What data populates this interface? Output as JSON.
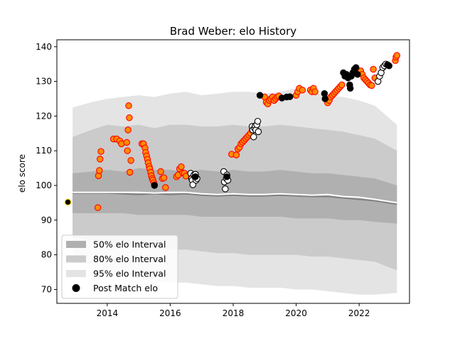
{
  "chart_data": {
    "type": "scatter",
    "title": "Brad Weber: elo History",
    "xlabel": "",
    "ylabel": "elo score",
    "xlim": [
      2012.4,
      2023.6
    ],
    "ylim": [
      66,
      142
    ],
    "x_ticks": [
      2014,
      2016,
      2018,
      2020,
      2022
    ],
    "y_ticks": [
      70,
      80,
      90,
      100,
      110,
      120,
      130,
      140
    ],
    "legend_position": "lower-left",
    "grid": false,
    "colors": {
      "band50": "#b0b0b0",
      "band80": "#cbcbcb",
      "band95": "#e4e4e4",
      "median_line": "#808080",
      "mean_line": "#ffffff",
      "win_fill": "#ff8c00",
      "win_edge": "#ff0000",
      "loss_fill": "#ffffff",
      "loss_edge": "#000000",
      "nomatch_fill": "#000000",
      "highlight_edge": "#ffd700"
    },
    "legend": [
      {
        "label": "50% elo Interval",
        "key": "band50"
      },
      {
        "label": "80% elo Interval",
        "key": "band80"
      },
      {
        "label": "95% elo Interval",
        "key": "band95"
      },
      {
        "label": "Post Match elo",
        "key": "marker"
      }
    ],
    "bands": {
      "x": [
        2012.9,
        2013.5,
        2014.0,
        2014.5,
        2015.0,
        2015.5,
        2016.0,
        2016.5,
        2017.0,
        2017.5,
        2018.0,
        2018.5,
        2019.0,
        2019.5,
        2020.0,
        2020.5,
        2021.0,
        2021.5,
        2022.0,
        2022.5,
        2023.2
      ],
      "p95_high": [
        122.5,
        124.0,
        125.0,
        125.5,
        126.0,
        125.5,
        126.5,
        127.0,
        126.0,
        126.5,
        127.0,
        127.0,
        126.5,
        127.0,
        128.0,
        127.0,
        126.0,
        125.5,
        124.5,
        123.0,
        117.5
      ],
      "p80_high": [
        114.0,
        116.0,
        117.5,
        117.0,
        117.5,
        116.5,
        117.5,
        117.5,
        117.0,
        117.0,
        117.5,
        117.0,
        117.0,
        117.5,
        117.0,
        116.5,
        116.0,
        115.5,
        114.5,
        113.5,
        110.0
      ],
      "p50_high": [
        103.5,
        104.0,
        104.5,
        104.0,
        105.0,
        104.5,
        104.5,
        104.0,
        104.5,
        104.0,
        104.5,
        104.0,
        104.0,
        104.5,
        104.0,
        103.5,
        103.5,
        103.0,
        102.5,
        102.0,
        100.0
      ],
      "median": [
        97.8,
        97.8,
        97.8,
        97.6,
        97.4,
        97.6,
        97.4,
        97.6,
        97.2,
        97.0,
        97.2,
        97.0,
        97.0,
        97.2,
        97.0,
        96.8,
        96.8,
        96.4,
        96.0,
        95.6,
        94.6
      ],
      "mean": [
        98.0,
        98.0,
        98.0,
        98.0,
        98.0,
        97.8,
        98.0,
        98.0,
        97.6,
        97.4,
        97.6,
        97.4,
        97.4,
        97.6,
        97.4,
        97.2,
        97.4,
        96.8,
        96.6,
        96.0,
        95.0
      ],
      "p50_low": [
        92.0,
        92.0,
        92.0,
        92.0,
        91.5,
        91.5,
        91.5,
        91.5,
        91.0,
        91.0,
        91.0,
        91.0,
        91.0,
        91.0,
        90.5,
        90.5,
        90.5,
        90.0,
        90.0,
        89.5,
        89.0
      ],
      "p80_low": [
        85.0,
        84.0,
        83.5,
        83.0,
        82.5,
        82.0,
        81.5,
        81.5,
        81.0,
        80.5,
        80.5,
        80.0,
        80.0,
        80.0,
        80.0,
        79.5,
        79.5,
        79.0,
        78.5,
        78.0,
        75.5
      ],
      "p95_low": [
        79.0,
        77.0,
        75.0,
        74.0,
        73.0,
        72.5,
        72.0,
        72.0,
        71.5,
        71.0,
        71.0,
        70.5,
        70.5,
        70.5,
        70.0,
        70.0,
        69.5,
        69.0,
        68.5,
        68.5,
        69.0
      ]
    },
    "series": [
      {
        "kind": "highlight",
        "x": [
          2012.75
        ],
        "y": [
          95.2
        ]
      },
      {
        "kind": "win",
        "x": [
          2013.7,
          2013.72,
          2013.75,
          2013.77,
          2013.8,
          2014.2,
          2014.3,
          2014.4,
          2014.45,
          2014.62,
          2014.64,
          2014.66,
          2014.68,
          2014.7,
          2014.72,
          2014.75,
          2015.1,
          2015.15,
          2015.2,
          2015.22,
          2015.25,
          2015.28,
          2015.3,
          2015.33,
          2015.35,
          2015.38,
          2015.4,
          2015.43,
          2015.45,
          2015.48,
          2015.5,
          2015.7,
          2015.75,
          2015.8,
          2015.85,
          2016.2,
          2016.25,
          2016.3,
          2016.35,
          2016.4,
          2016.45,
          2016.5,
          2017.95,
          2018.1,
          2018.15,
          2018.2,
          2018.25,
          2018.3,
          2018.35,
          2018.4,
          2018.45,
          2018.5,
          2018.55,
          2018.6,
          2018.65,
          2019.0,
          2019.05,
          2019.1,
          2019.15,
          2019.2,
          2019.25,
          2019.3,
          2019.35,
          2019.4,
          2019.45,
          2020.0,
          2020.05,
          2020.1,
          2020.2,
          2020.45,
          2020.5,
          2020.55,
          2020.6,
          2021.0,
          2021.05,
          2021.1,
          2021.15,
          2021.2,
          2021.25,
          2021.3,
          2021.35,
          2021.4,
          2021.45,
          2022.05,
          2022.1,
          2022.15,
          2022.2,
          2022.25,
          2022.3,
          2022.35,
          2022.4,
          2022.45,
          2022.5,
          2023.15,
          2023.17,
          2023.2
        ],
        "y": [
          93.6,
          102.8,
          104.3,
          107.6,
          109.8,
          113.4,
          113.4,
          112.8,
          112.0,
          112.4,
          110.0,
          116.0,
          123.0,
          119.5,
          103.8,
          107.2,
          112.0,
          112.0,
          110.8,
          109.5,
          108.5,
          107.5,
          106.5,
          105.5,
          104.8,
          103.8,
          102.8,
          102.0,
          101.5,
          100.8,
          100.2,
          104.0,
          102.0,
          102.2,
          99.4,
          102.5,
          103.0,
          104.8,
          105.4,
          103.6,
          103.5,
          102.7,
          109.0,
          108.8,
          110.5,
          111.0,
          112.0,
          112.5,
          113.0,
          113.5,
          114.0,
          114.5,
          115.0,
          116.0,
          116.5,
          125.5,
          124.0,
          123.5,
          124.5,
          125.0,
          125.5,
          124.5,
          125.0,
          125.5,
          125.8,
          126.0,
          127.0,
          128.0,
          127.5,
          127.5,
          127.0,
          128.0,
          127.0,
          123.8,
          124.5,
          125.5,
          126.0,
          126.5,
          127.0,
          127.5,
          128.0,
          128.5,
          129.0,
          133.0,
          132.0,
          131.0,
          130.5,
          130.0,
          129.5,
          129.0,
          128.8,
          133.5,
          131.0,
          136.0,
          137.0,
          137.5
        ]
      },
      {
        "kind": "loss",
        "x": [
          2016.65,
          2016.68,
          2016.7,
          2016.72,
          2016.75,
          2016.78,
          2016.8,
          2016.82,
          2016.85,
          2017.7,
          2017.72,
          2017.75,
          2017.78,
          2017.8,
          2017.83,
          2018.6,
          2018.62,
          2018.65,
          2018.68,
          2018.7,
          2018.72,
          2018.75,
          2018.78,
          2018.8,
          2022.6,
          2022.65,
          2022.7,
          2022.75,
          2022.8,
          2022.85
        ],
        "y": [
          103.5,
          102.0,
          101.5,
          100.2,
          103.0,
          102.5,
          103.2,
          101.5,
          102.0,
          104.0,
          101.0,
          99.0,
          102.0,
          103.0,
          101.5,
          117.0,
          116.0,
          114.0,
          116.5,
          117.2,
          116.0,
          117.5,
          118.5,
          115.5,
          130.0,
          131.5,
          132.5,
          134.0,
          134.5,
          135.0
        ]
      },
      {
        "kind": "nomatch",
        "x": [
          2015.5,
          2016.8,
          2017.8,
          2018.85,
          2019.55,
          2019.7,
          2019.8,
          2020.9,
          2020.92,
          2021.5,
          2021.55,
          2021.6,
          2021.65,
          2021.7,
          2021.72,
          2021.75,
          2021.8,
          2021.85,
          2021.9,
          2021.95,
          2022.9,
          2022.95
        ],
        "y": [
          100.0,
          102.5,
          102.5,
          126.0,
          125.2,
          125.5,
          125.6,
          126.5,
          125.0,
          132.5,
          131.5,
          132.0,
          131.0,
          129.0,
          128.0,
          131.5,
          132.5,
          133.5,
          134.0,
          132.0,
          134.8,
          134.5
        ]
      }
    ]
  }
}
